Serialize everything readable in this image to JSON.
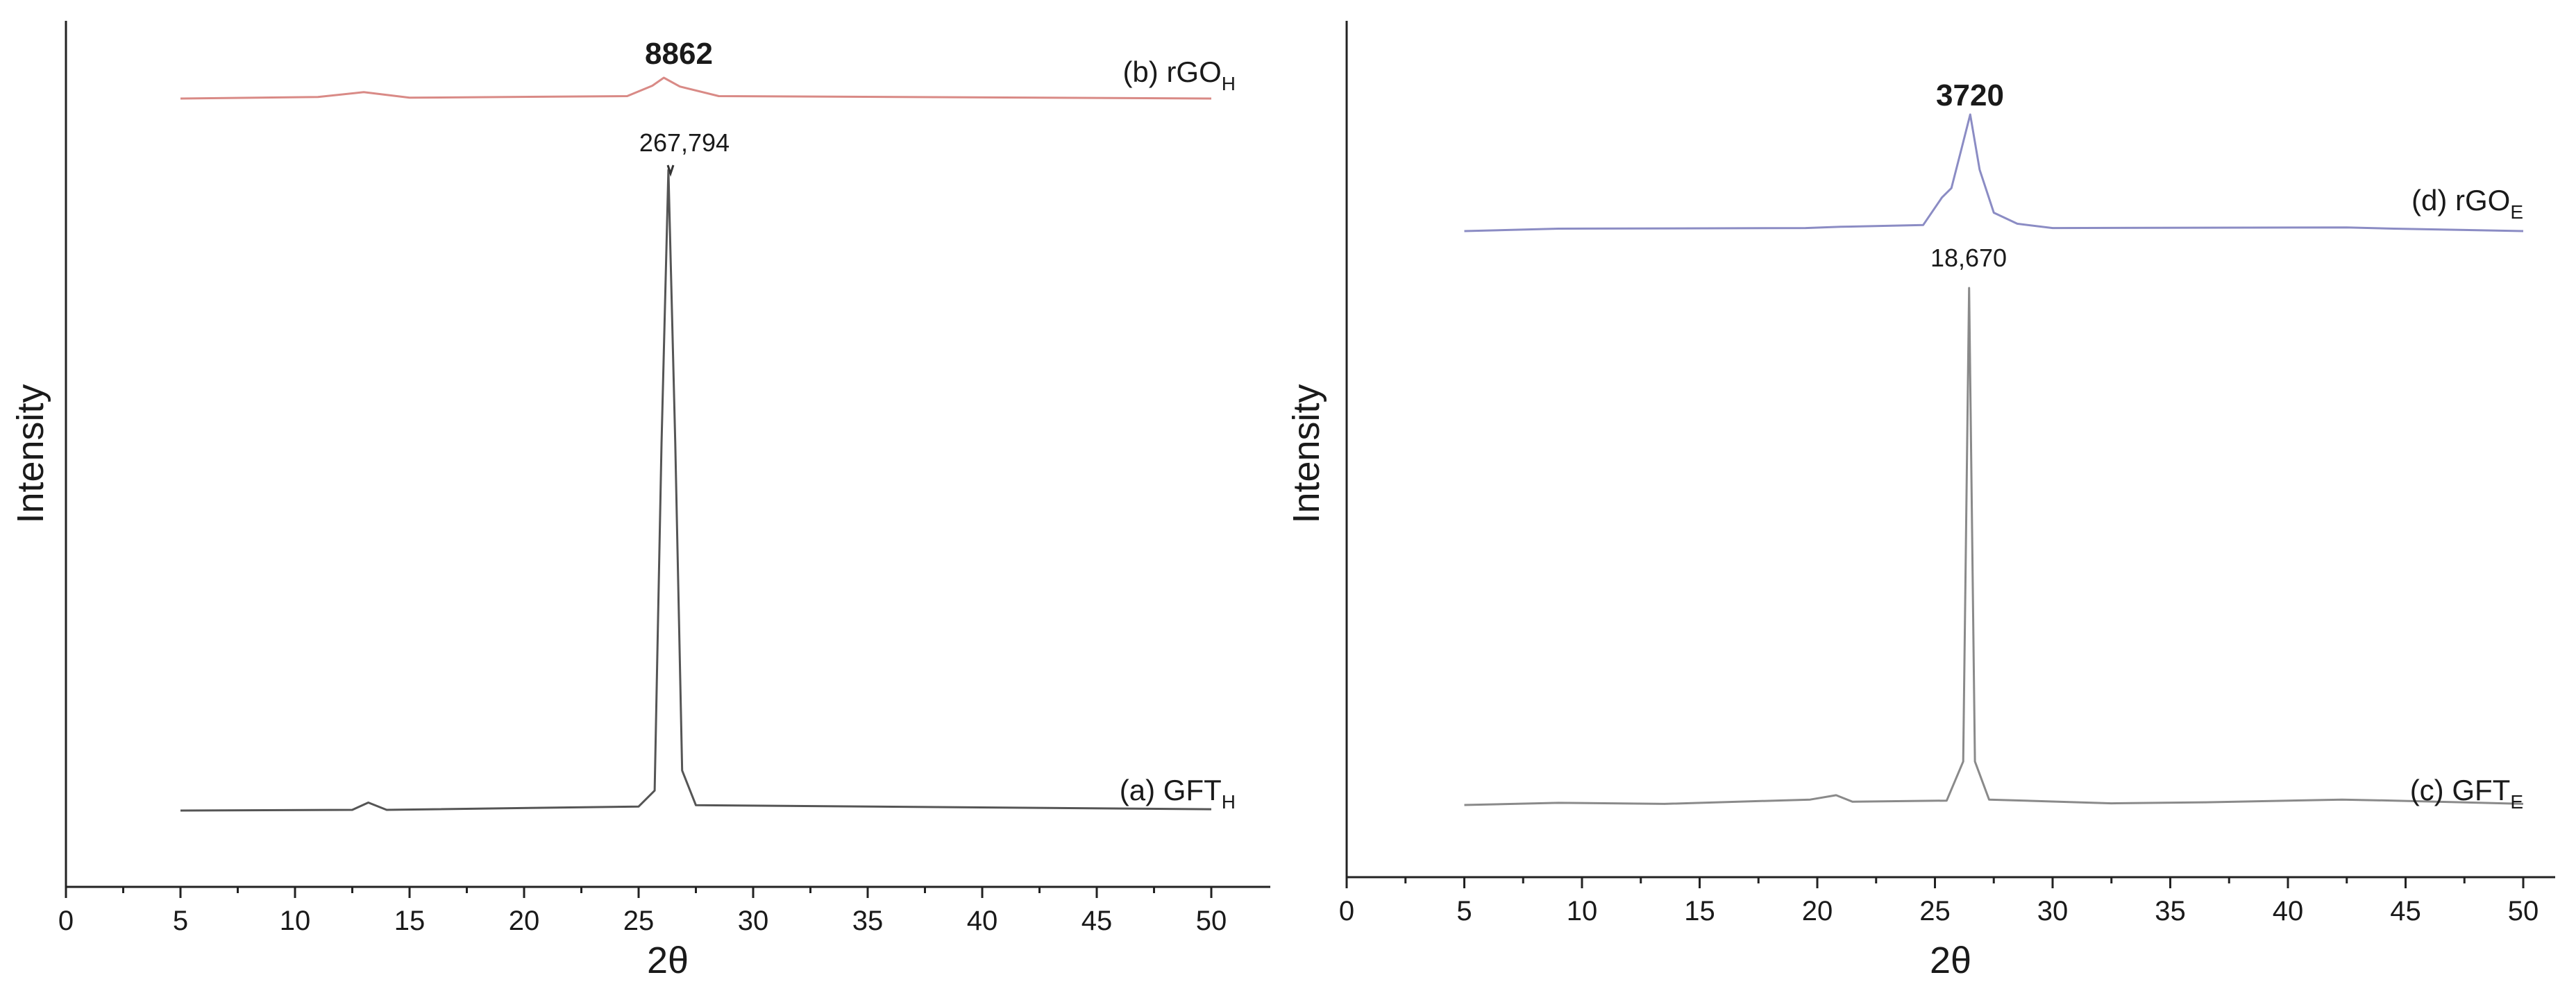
{
  "chart_data": [
    {
      "type": "line",
      "xlabel": "2θ",
      "ylabel": "Intensity",
      "xlim": [
        0,
        52
      ],
      "x_ticks": [
        "0",
        "5",
        "10",
        "15",
        "20",
        "25",
        "30",
        "35",
        "40",
        "45",
        "50"
      ],
      "x_minor_step": 2.5,
      "grid": false,
      "series": [
        {
          "name": "(a) GFT",
          "subscript": "H",
          "color": "#555555",
          "points": [
            [
              5,
              0
            ],
            [
              12.5,
              0.1
            ],
            [
              13.2,
              1.2
            ],
            [
              14,
              0.1
            ],
            [
              25,
              0.6
            ],
            [
              25.7,
              3
            ],
            [
              26.0,
              55
            ],
            [
              26.3,
              96
            ],
            [
              26.6,
              55
            ],
            [
              26.9,
              6
            ],
            [
              27.5,
              0.8
            ],
            [
              50,
              0.2
            ]
          ]
        },
        {
          "name": "(b) rGO",
          "subscript": "H",
          "color": "#d98a86",
          "points": [
            [
              5,
              0
            ],
            [
              11,
              0.2
            ],
            [
              13,
              0.8
            ],
            [
              15,
              0.1
            ],
            [
              24.5,
              0.3
            ],
            [
              25.6,
              1.6
            ],
            [
              26.1,
              2.6
            ],
            [
              26.8,
              1.5
            ],
            [
              28.5,
              0.3
            ],
            [
              50,
              0
            ]
          ]
        }
      ],
      "annotations": [
        {
          "text": "8862",
          "series": "(b) rGO"
        },
        {
          "text": "267,794",
          "series": "(a) GFT"
        }
      ]
    },
    {
      "type": "line",
      "xlabel": "2θ",
      "ylabel": "Intensity",
      "xlim": [
        0,
        52
      ],
      "x_ticks": [
        "0",
        "5",
        "10",
        "15",
        "20",
        "25",
        "30",
        "35",
        "40",
        "45",
        "50"
      ],
      "x_minor_step": 2.5,
      "grid": false,
      "series": [
        {
          "name": "(c) GFT",
          "subscript": "E",
          "color": "#8a8a8a",
          "points": [
            [
              5,
              0
            ],
            [
              9,
              0.4
            ],
            [
              13.5,
              0.2
            ],
            [
              19.7,
              1.0
            ],
            [
              20.8,
              1.8
            ],
            [
              21.5,
              0.6
            ],
            [
              25.5,
              0.8
            ],
            [
              26.2,
              8
            ],
            [
              26.45,
              95
            ],
            [
              26.7,
              8
            ],
            [
              27.3,
              1
            ],
            [
              32.5,
              0.3
            ],
            [
              36.5,
              0.5
            ],
            [
              42.3,
              1.0
            ],
            [
              44.5,
              0.8
            ],
            [
              50,
              0.2
            ]
          ]
        },
        {
          "name": "(d) rGO",
          "subscript": "E",
          "color": "#8b8cc4",
          "points": [
            [
              5,
              0
            ],
            [
              9,
              0.4
            ],
            [
              19.5,
              0.5
            ],
            [
              21,
              0.7
            ],
            [
              24.5,
              1.0
            ],
            [
              25.3,
              5.5
            ],
            [
              25.7,
              7
            ],
            [
              26.1,
              13
            ],
            [
              26.5,
              19
            ],
            [
              26.9,
              10
            ],
            [
              27.5,
              3
            ],
            [
              28.5,
              1.2
            ],
            [
              30,
              0.5
            ],
            [
              42.5,
              0.6
            ],
            [
              44.5,
              0.4
            ],
            [
              50,
              0
            ]
          ]
        }
      ],
      "annotations": [
        {
          "text": "3720",
          "series": "(d) rGO"
        },
        {
          "text": "18,670",
          "series": "(c) GFT"
        }
      ]
    }
  ]
}
